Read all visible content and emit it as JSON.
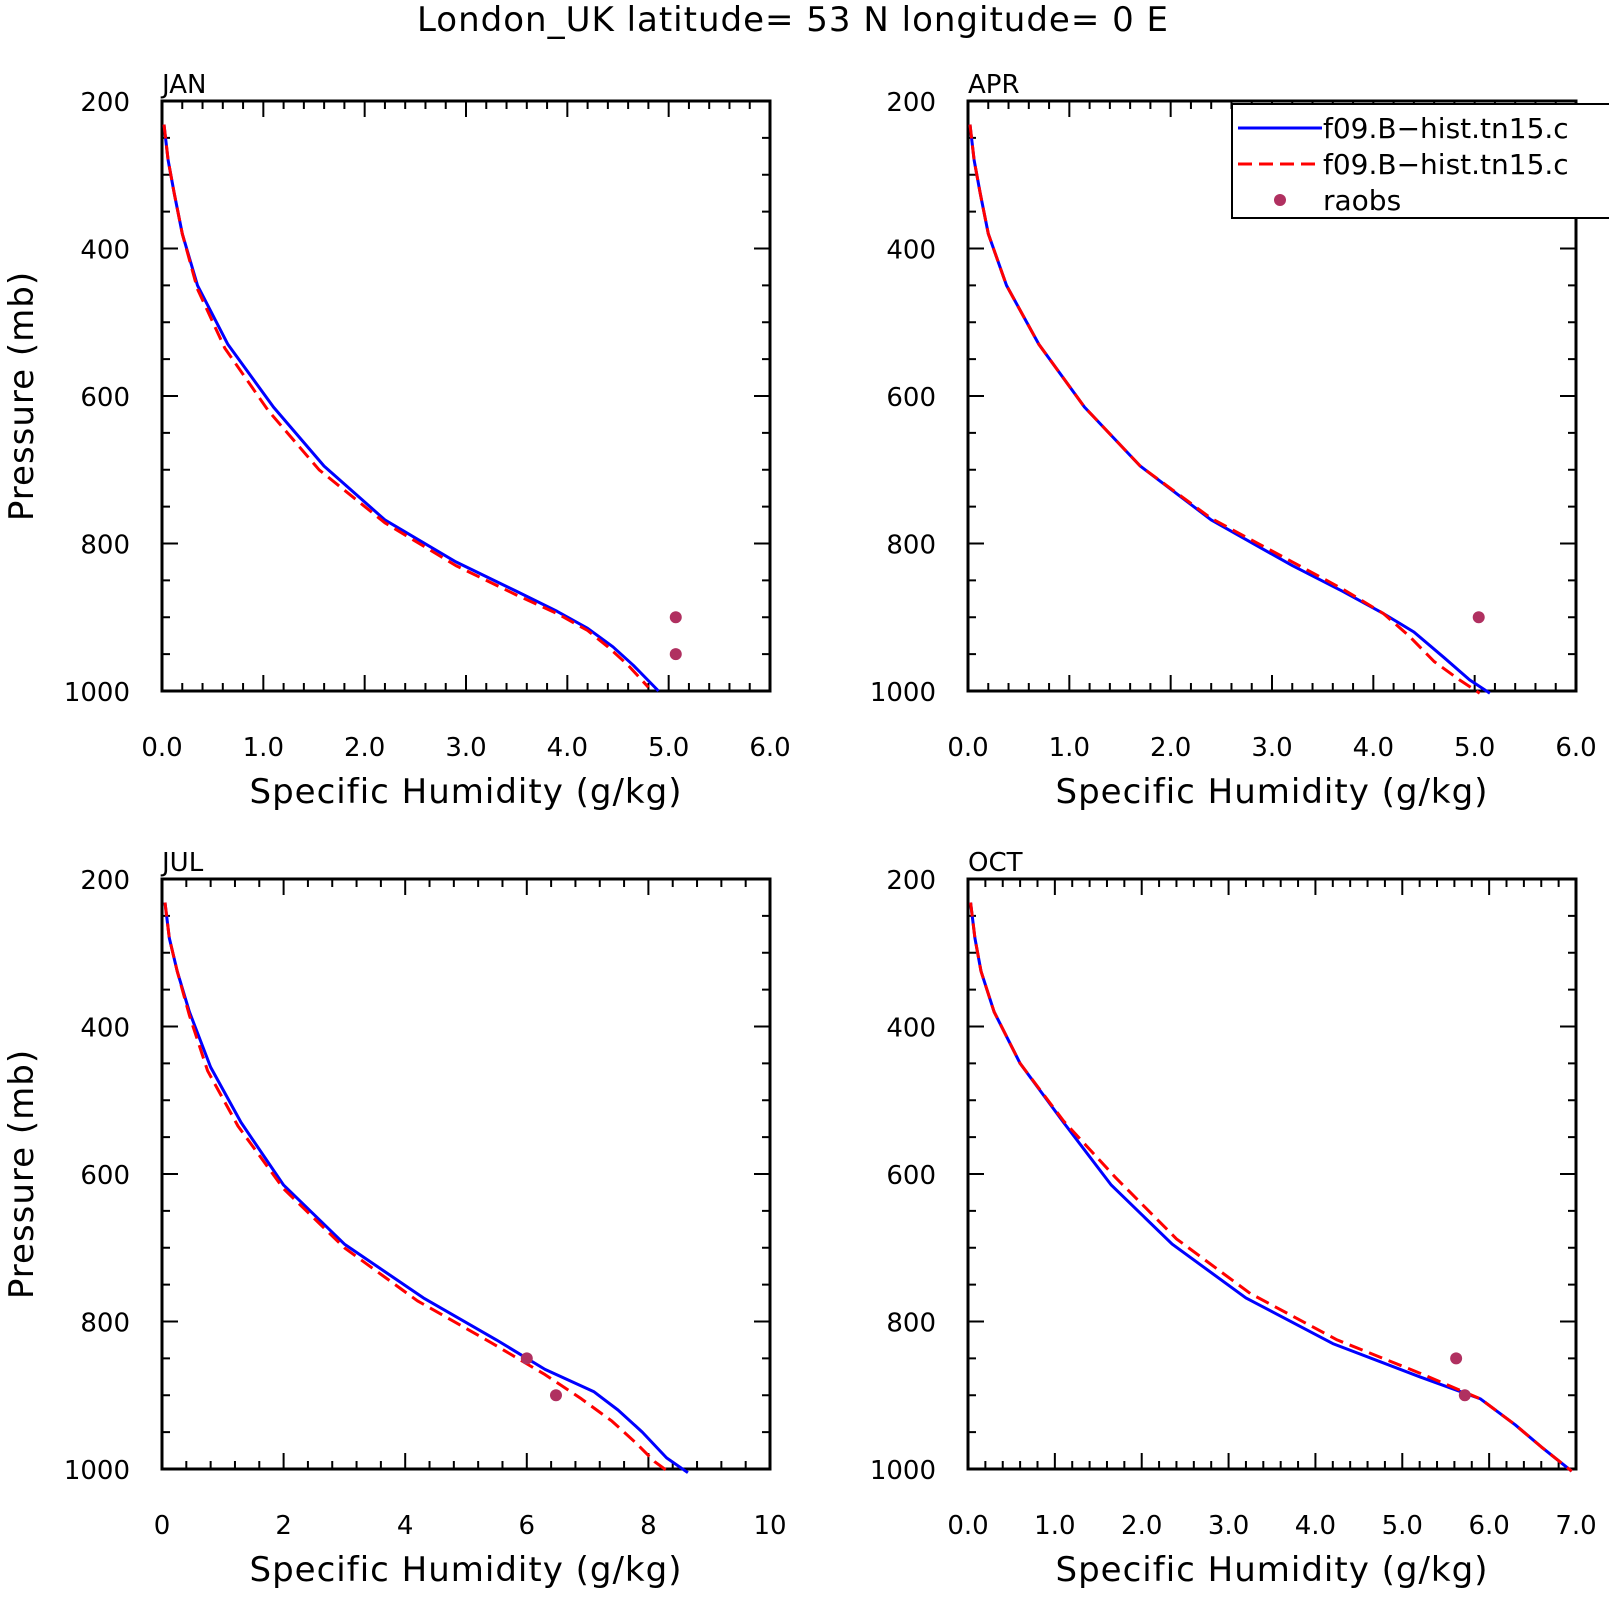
{
  "chart_data": {
    "type": "line",
    "title": "London_UK  latitude= 53 N longitude= 0 E",
    "legend": {
      "placement": "top-right",
      "entries": [
        {
          "label": "f09.B−hist.tn15.c",
          "style": "solid",
          "color": "#0000ff"
        },
        {
          "label": "f09.B−hist.tn15.c",
          "style": "dashed",
          "color": "#ff0000"
        },
        {
          "label": "raobs",
          "style": "marker",
          "color": "#b03060"
        }
      ]
    },
    "panels": [
      {
        "label": "JAN",
        "xlabel": "Specific Humidity (g/kg)",
        "ylabel": "Pressure (mb)",
        "xlim": [
          0,
          6
        ],
        "ylim": [
          200,
          1000
        ],
        "xticks": [
          "0.0",
          "1.0",
          "2.0",
          "3.0",
          "4.0",
          "5.0",
          "6.0"
        ],
        "xtick_values": [
          0,
          1,
          2,
          3,
          4,
          5,
          6
        ],
        "xminor": 0.2,
        "yticks": [
          "200",
          "400",
          "600",
          "800",
          "1000"
        ],
        "ytick_values": [
          200,
          400,
          600,
          800,
          1000
        ],
        "series": [
          {
            "style": "solid",
            "points": [
              [
                0.02,
                232
              ],
              [
                0.06,
                280
              ],
              [
                0.12,
                325
              ],
              [
                0.2,
                380
              ],
              [
                0.35,
                450
              ],
              [
                0.65,
                530
              ],
              [
                1.1,
                615
              ],
              [
                1.6,
                695
              ],
              [
                2.2,
                768
              ],
              [
                2.9,
                825
              ],
              [
                3.5,
                865
              ],
              [
                3.9,
                892
              ],
              [
                4.2,
                915
              ],
              [
                4.45,
                940
              ],
              [
                4.65,
                965
              ],
              [
                4.9,
                1000
              ]
            ]
          },
          {
            "style": "dashed",
            "points": [
              [
                0.02,
                232
              ],
              [
                0.06,
                280
              ],
              [
                0.12,
                325
              ],
              [
                0.2,
                380
              ],
              [
                0.35,
                455
              ],
              [
                0.62,
                535
              ],
              [
                1.05,
                620
              ],
              [
                1.55,
                700
              ],
              [
                2.2,
                772
              ],
              [
                2.9,
                830
              ],
              [
                3.5,
                870
              ],
              [
                3.9,
                895
              ],
              [
                4.2,
                918
              ],
              [
                4.4,
                940
              ],
              [
                4.6,
                965
              ],
              [
                4.8,
                995
              ]
            ]
          },
          {
            "style": "marker",
            "points": [
              [
                5.07,
                900
              ],
              [
                5.07,
                950
              ]
            ]
          }
        ]
      },
      {
        "label": "APR",
        "xlabel": "Specific Humidity (g/kg)",
        "ylabel": "",
        "xlim": [
          0,
          6
        ],
        "ylim": [
          200,
          1000
        ],
        "xticks": [
          "0.0",
          "1.0",
          "2.0",
          "3.0",
          "4.0",
          "5.0",
          "6.0"
        ],
        "xtick_values": [
          0,
          1,
          2,
          3,
          4,
          5,
          6
        ],
        "xminor": 0.2,
        "yticks": [
          "200",
          "400",
          "600",
          "800",
          "1000"
        ],
        "ytick_values": [
          200,
          400,
          600,
          800,
          1000
        ],
        "series": [
          {
            "style": "solid",
            "points": [
              [
                0.02,
                232
              ],
              [
                0.06,
                280
              ],
              [
                0.12,
                325
              ],
              [
                0.2,
                380
              ],
              [
                0.38,
                450
              ],
              [
                0.7,
                530
              ],
              [
                1.15,
                615
              ],
              [
                1.7,
                695
              ],
              [
                2.4,
                768
              ],
              [
                3.2,
                830
              ],
              [
                3.7,
                865
              ],
              [
                4.1,
                895
              ],
              [
                4.4,
                920
              ],
              [
                4.7,
                955
              ],
              [
                4.95,
                985
              ],
              [
                5.15,
                1003
              ]
            ]
          },
          {
            "style": "dashed",
            "points": [
              [
                0.02,
                232
              ],
              [
                0.06,
                280
              ],
              [
                0.12,
                325
              ],
              [
                0.2,
                380
              ],
              [
                0.38,
                450
              ],
              [
                0.7,
                530
              ],
              [
                1.15,
                615
              ],
              [
                1.7,
                695
              ],
              [
                2.4,
                766
              ],
              [
                3.2,
                825
              ],
              [
                3.7,
                862
              ],
              [
                4.1,
                895
              ],
              [
                4.35,
                925
              ],
              [
                4.6,
                960
              ],
              [
                4.85,
                985
              ],
              [
                5.05,
                1003
              ]
            ]
          },
          {
            "style": "marker",
            "points": [
              [
                5.04,
                900
              ]
            ]
          }
        ]
      },
      {
        "label": "JUL",
        "xlabel": "Specific Humidity (g/kg)",
        "ylabel": "Pressure (mb)",
        "xlim": [
          0,
          10
        ],
        "ylim": [
          200,
          1000
        ],
        "xticks": [
          "0",
          "2",
          "4",
          "6",
          "8",
          "10"
        ],
        "xtick_values": [
          0,
          2,
          4,
          6,
          8,
          10
        ],
        "xminor": 0.4,
        "yticks": [
          "200",
          "400",
          "600",
          "800",
          "1000"
        ],
        "ytick_values": [
          200,
          400,
          600,
          800,
          1000
        ],
        "series": [
          {
            "style": "solid",
            "points": [
              [
                0.05,
                232
              ],
              [
                0.12,
                280
              ],
              [
                0.25,
                325
              ],
              [
                0.45,
                380
              ],
              [
                0.8,
                455
              ],
              [
                1.3,
                530
              ],
              [
                2.0,
                615
              ],
              [
                3.0,
                695
              ],
              [
                4.3,
                768
              ],
              [
                5.5,
                825
              ],
              [
                6.3,
                865
              ],
              [
                7.1,
                895
              ],
              [
                7.5,
                920
              ],
              [
                7.9,
                950
              ],
              [
                8.3,
                985
              ],
              [
                8.65,
                1005
              ]
            ]
          },
          {
            "style": "dashed",
            "points": [
              [
                0.05,
                232
              ],
              [
                0.12,
                280
              ],
              [
                0.25,
                325
              ],
              [
                0.45,
                385
              ],
              [
                0.75,
                460
              ],
              [
                1.25,
                535
              ],
              [
                2.0,
                620
              ],
              [
                3.0,
                700
              ],
              [
                4.2,
                772
              ],
              [
                5.4,
                828
              ],
              [
                6.3,
                872
              ],
              [
                6.9,
                905
              ],
              [
                7.4,
                935
              ],
              [
                7.8,
                965
              ],
              [
                8.1,
                990
              ],
              [
                8.35,
                1005
              ]
            ]
          },
          {
            "style": "marker",
            "points": [
              [
                6.0,
                850
              ],
              [
                6.48,
                900
              ]
            ]
          }
        ]
      },
      {
        "label": "OCT",
        "xlabel": "Specific Humidity (g/kg)",
        "ylabel": "",
        "xlim": [
          0,
          7
        ],
        "ylim": [
          200,
          1000
        ],
        "xticks": [
          "0.0",
          "1.0",
          "2.0",
          "3.0",
          "4.0",
          "5.0",
          "6.0",
          "7.0"
        ],
        "xtick_values": [
          0,
          1,
          2,
          3,
          4,
          5,
          6,
          7
        ],
        "xminor": 0.2,
        "yticks": [
          "200",
          "400",
          "600",
          "800",
          "1000"
        ],
        "ytick_values": [
          200,
          400,
          600,
          800,
          1000
        ],
        "series": [
          {
            "style": "solid",
            "points": [
              [
                0.03,
                232
              ],
              [
                0.08,
                280
              ],
              [
                0.15,
                325
              ],
              [
                0.3,
                380
              ],
              [
                0.6,
                450
              ],
              [
                1.1,
                530
              ],
              [
                1.65,
                615
              ],
              [
                2.35,
                695
              ],
              [
                3.2,
                768
              ],
              [
                4.2,
                830
              ],
              [
                5.2,
                875
              ],
              [
                5.9,
                905
              ],
              [
                6.3,
                940
              ],
              [
                6.6,
                970
              ],
              [
                6.95,
                1003
              ]
            ]
          },
          {
            "style": "dashed",
            "points": [
              [
                0.03,
                232
              ],
              [
                0.08,
                280
              ],
              [
                0.15,
                325
              ],
              [
                0.3,
                380
              ],
              [
                0.6,
                450
              ],
              [
                1.1,
                528
              ],
              [
                1.7,
                605
              ],
              [
                2.4,
                688
              ],
              [
                3.25,
                762
              ],
              [
                4.25,
                825
              ],
              [
                5.2,
                870
              ],
              [
                5.9,
                905
              ],
              [
                6.3,
                940
              ],
              [
                6.6,
                970
              ],
              [
                6.95,
                1003
              ]
            ]
          },
          {
            "style": "marker",
            "points": [
              [
                5.62,
                850
              ],
              [
                5.72,
                900
              ]
            ]
          }
        ]
      }
    ]
  }
}
